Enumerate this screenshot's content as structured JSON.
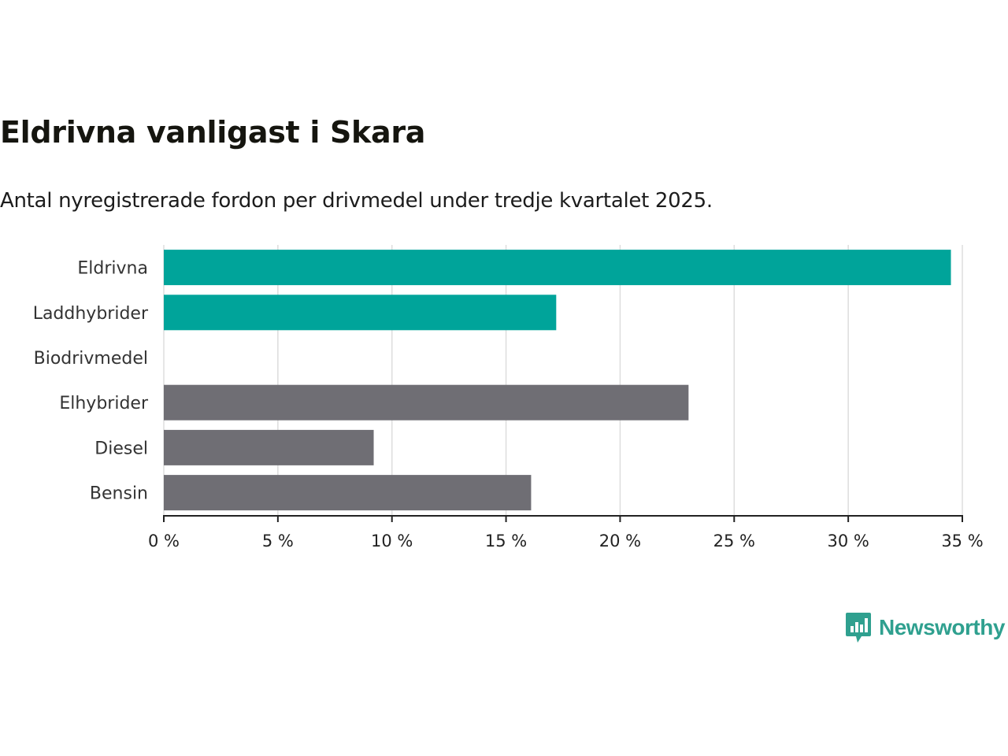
{
  "colors": {
    "highlight": "#00a49a",
    "neutral": "#6f6e74",
    "grid": "#dddddd",
    "axis": "#222222",
    "brand": "#2fa08f"
  },
  "chart_data": {
    "type": "bar",
    "orientation": "horizontal",
    "title": "Eldrivna vanligast i Skara",
    "subtitle": "Antal nyregistrerade fordon per drivmedel under tredje kvartalet 2025.",
    "categories": [
      "Eldrivna",
      "Laddhybrider",
      "Biodrivmedel",
      "Elhybrider",
      "Diesel",
      "Bensin"
    ],
    "values": [
      34.5,
      17.2,
      0,
      23.0,
      9.2,
      16.1
    ],
    "highlighted": [
      true,
      true,
      false,
      false,
      false,
      false
    ],
    "xlabel": "",
    "ylabel": "",
    "xlim": [
      0,
      35
    ],
    "ticks": [
      0,
      5,
      10,
      15,
      20,
      25,
      30,
      35
    ],
    "tick_labels": [
      "0 %",
      "5 %",
      "10 %",
      "15 %",
      "20 %",
      "25 %",
      "30 %",
      "35 %"
    ],
    "grid": true
  },
  "brand": {
    "name": "Newsworthy",
    "icon": "newsworthy-logo-icon"
  }
}
